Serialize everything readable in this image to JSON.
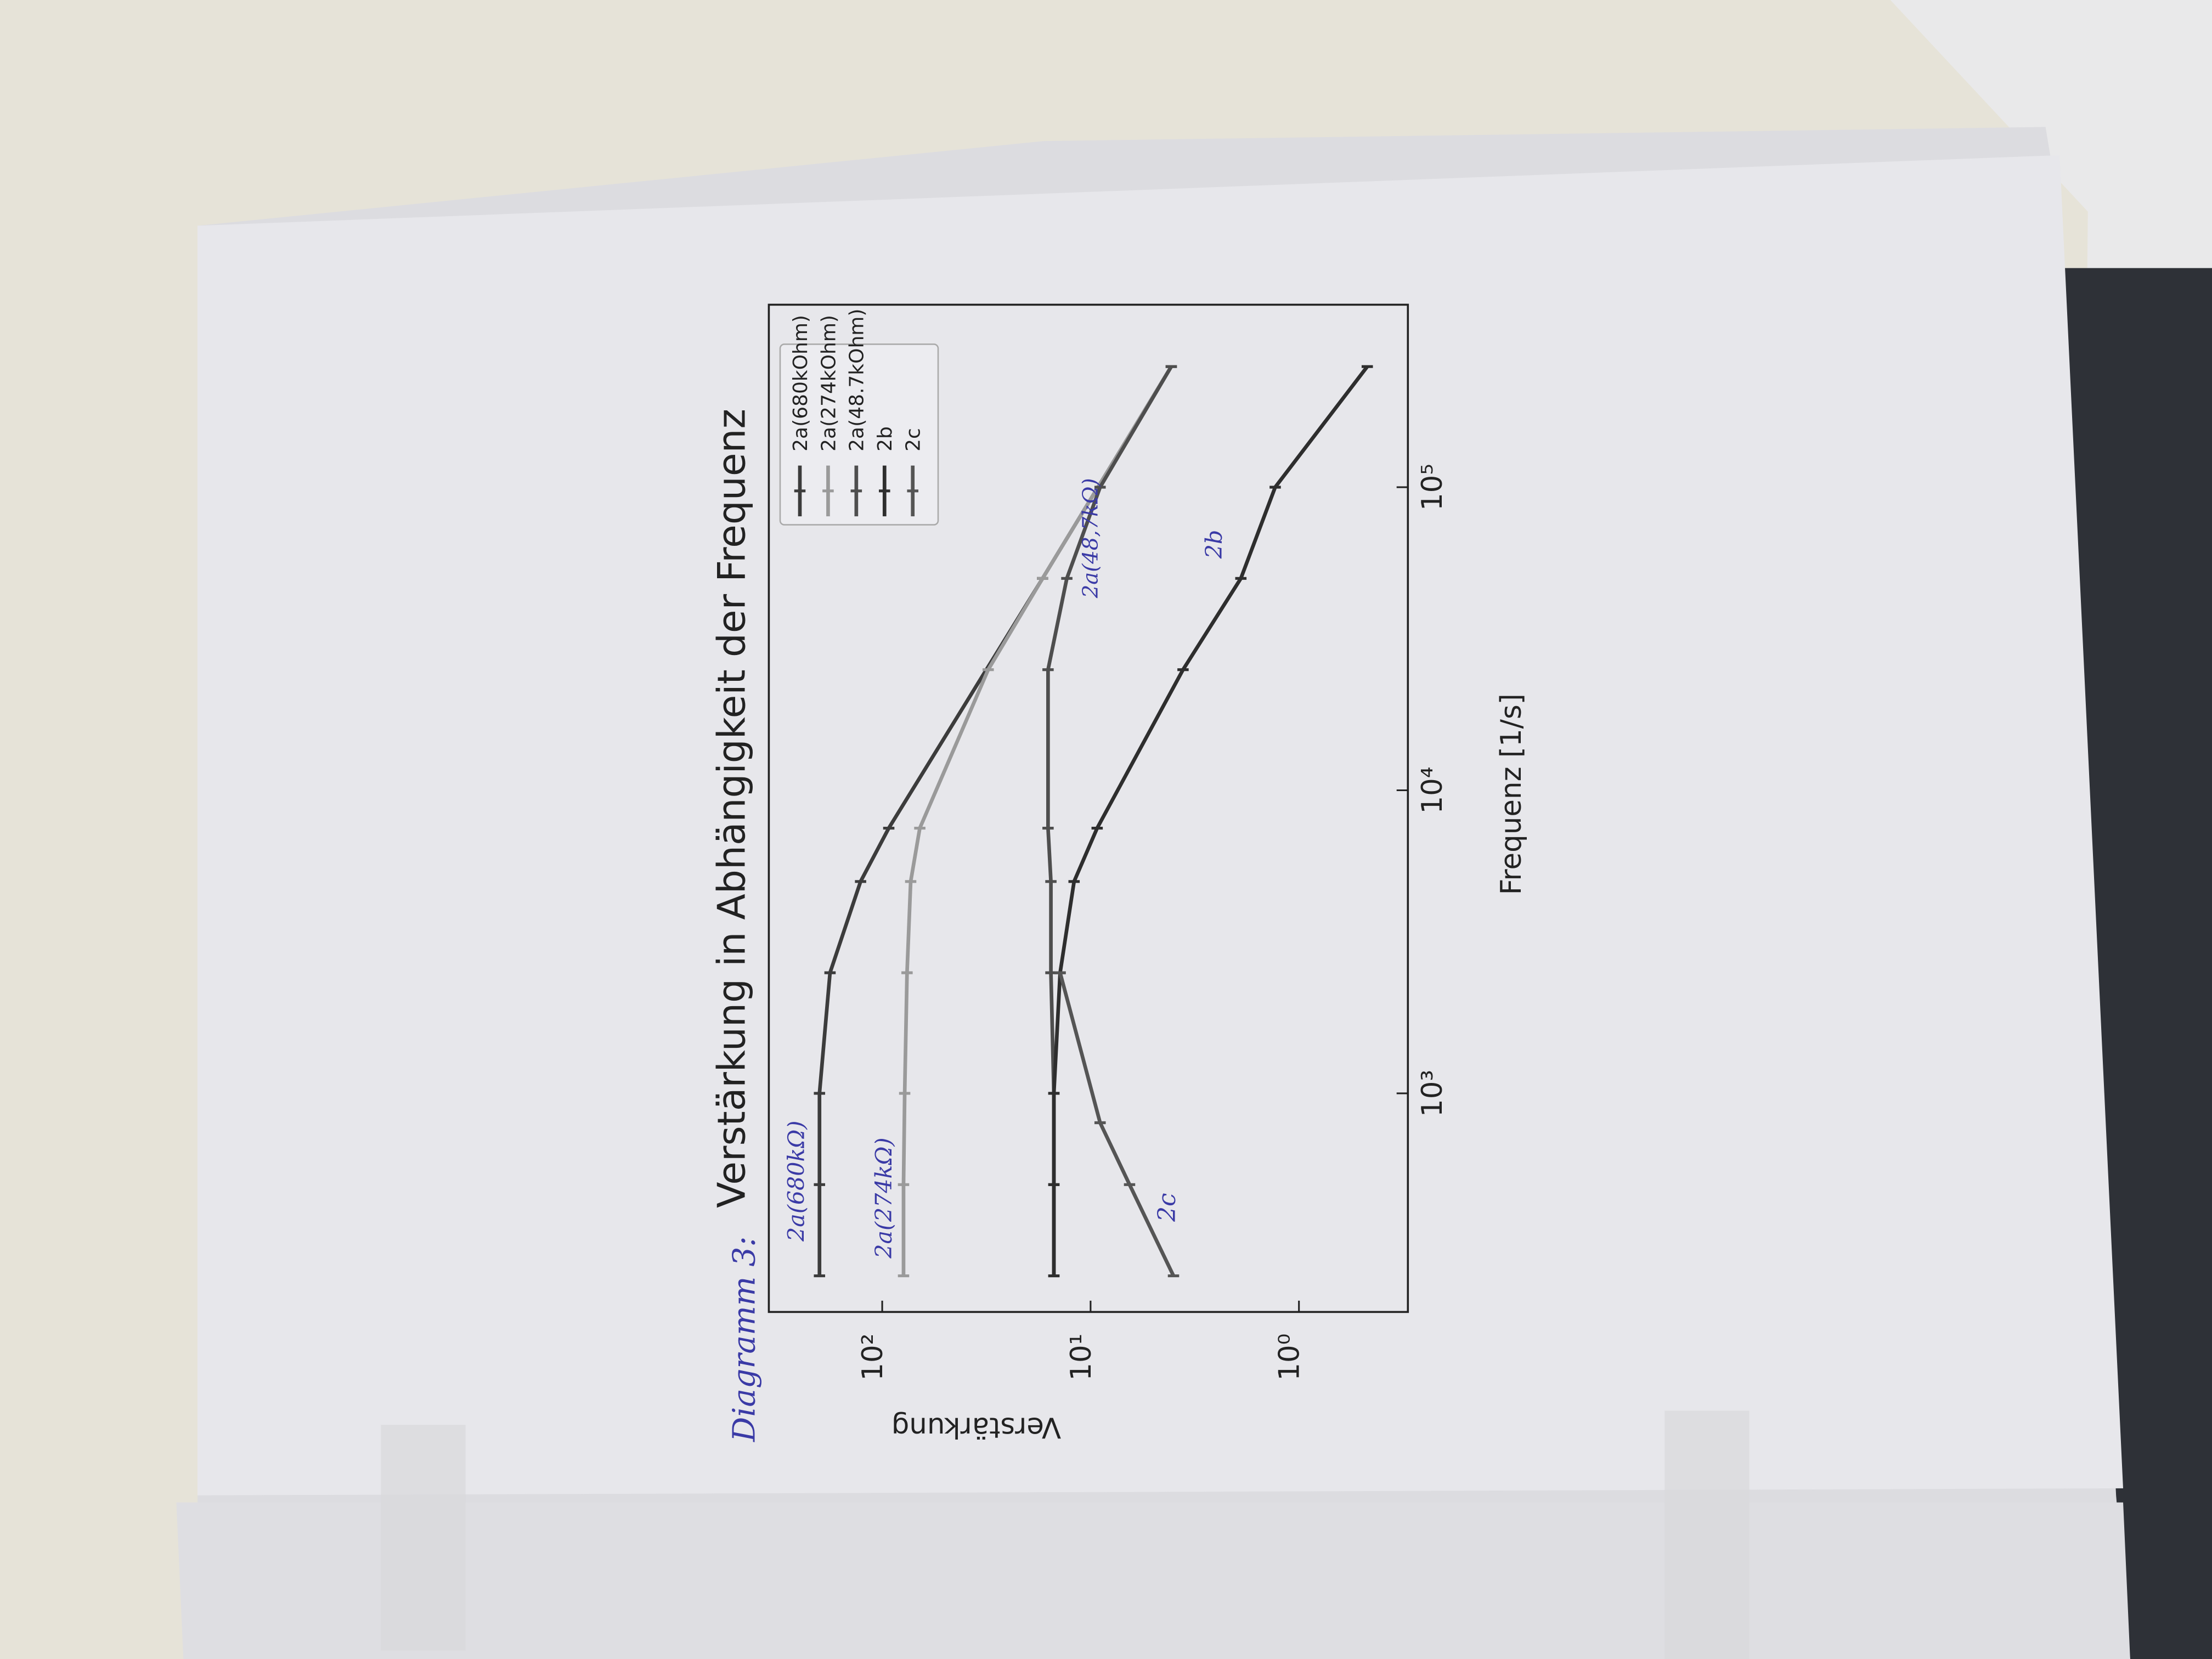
{
  "chart_data": {
    "type": "line",
    "title": "Verstärkung in Abhängigkeit der Frequenz",
    "x_label": "Frequenz [1/s]",
    "y_label": "Verstärkung",
    "xscale": "log",
    "yscale": "log",
    "xlim": [
      190,
      400000
    ],
    "ylim": [
      0.3,
      350
    ],
    "xticks": [
      {
        "value": 1000,
        "label": "10³"
      },
      {
        "value": 10000,
        "label": "10⁴"
      },
      {
        "value": 100000,
        "label": "10⁵"
      }
    ],
    "yticks": [
      {
        "value": 1,
        "label": "10⁰"
      },
      {
        "value": 10,
        "label": "10¹"
      },
      {
        "value": 100,
        "label": "10²"
      }
    ],
    "legend": "upper right",
    "series": [
      {
        "name": "2a(680kOhm)",
        "color": "#3c3c3c",
        "x": [
          250,
          500,
          1000,
          2500,
          5000,
          7500,
          50000,
          250000
        ],
        "values": [
          200,
          200,
          200,
          178,
          127,
          93,
          17,
          4.1
        ]
      },
      {
        "name": "2a(274kOhm)",
        "color": "#9a9a9a",
        "x": [
          250,
          500,
          1000,
          2500,
          5000,
          7500,
          25000,
          50000,
          250000
        ],
        "values": [
          79,
          79,
          78,
          76,
          73,
          66,
          31,
          17,
          4.1
        ]
      },
      {
        "name": "2a(48.7kOhm)",
        "color": "#4e4e4e",
        "x": [
          250,
          500,
          1000,
          2500,
          5000,
          7500,
          25000,
          50000,
          100000,
          250000
        ],
        "values": [
          15,
          15,
          15,
          15.5,
          15.5,
          16,
          16,
          13,
          9,
          4.1
        ]
      },
      {
        "name": "2b",
        "color": "#2e2e2e",
        "x": [
          250,
          500,
          1000,
          2500,
          5000,
          7500,
          25000,
          50000,
          100000,
          250000
        ],
        "values": [
          15,
          15,
          15,
          14,
          12,
          9.3,
          3.6,
          1.9,
          1.3,
          0.47
        ]
      },
      {
        "name": "2c",
        "color": "#555555",
        "x": [
          250,
          500,
          800,
          2500
        ],
        "values": [
          4.0,
          6.5,
          9,
          14
        ]
      }
    ],
    "annotations": [
      "Diagramm 3:",
      "2a(680kΩ)",
      "2a(274kΩ)",
      "2a(48,7kΩ)",
      "2c",
      "2b"
    ]
  }
}
